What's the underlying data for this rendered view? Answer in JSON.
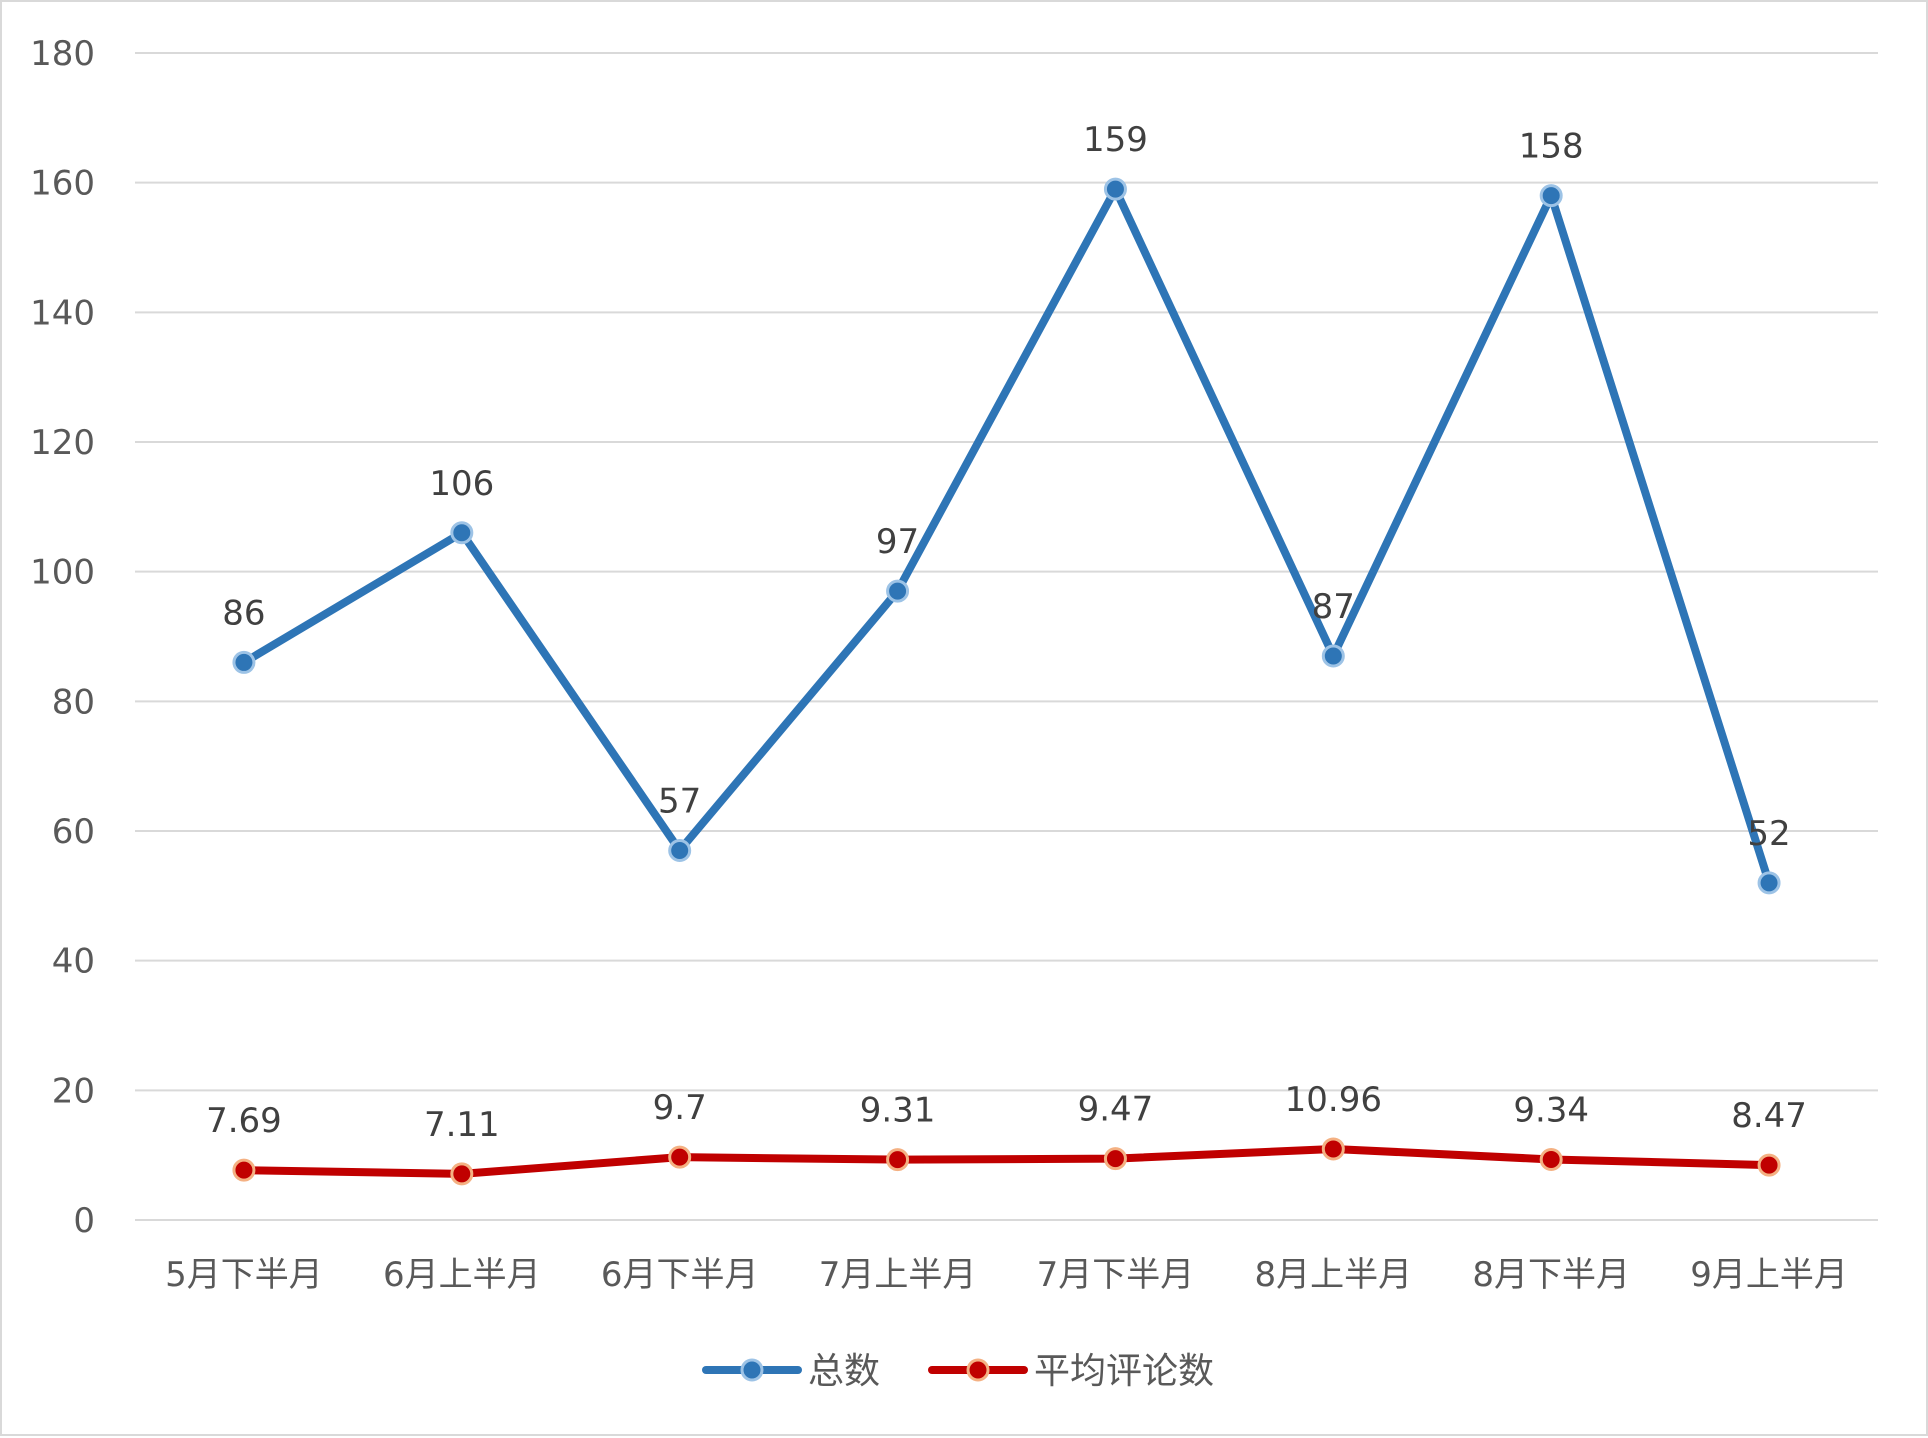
{
  "chart_data": {
    "type": "line",
    "title": "",
    "xlabel": "",
    "ylabel": "",
    "categories": [
      "5月下半月",
      "6月上半月",
      "6月下半月",
      "7月上半月",
      "7月下半月",
      "8月上半月",
      "8月下半月",
      "9月上半月"
    ],
    "ylim": [
      0,
      180
    ],
    "yticks": [
      0,
      20,
      40,
      60,
      80,
      100,
      120,
      140,
      160,
      180
    ],
    "grid": true,
    "legend_position": "bottom",
    "series": [
      {
        "name": "总数",
        "values": [
          86,
          106,
          57,
          97,
          159,
          87,
          158,
          52
        ],
        "labels": [
          "86",
          "106",
          "57",
          "97",
          "159",
          "87",
          "158",
          "52"
        ],
        "color": "#2e75b6"
      },
      {
        "name": "平均评论数",
        "values": [
          7.69,
          7.11,
          9.7,
          9.31,
          9.47,
          10.96,
          9.34,
          8.47
        ],
        "labels": [
          "7.69",
          "7.11",
          "9.7",
          "9.31",
          "9.47",
          "10.96",
          "9.34",
          "8.47"
        ],
        "color": "#c00000",
        "marker_edge_color": "#f4b183"
      }
    ]
  }
}
